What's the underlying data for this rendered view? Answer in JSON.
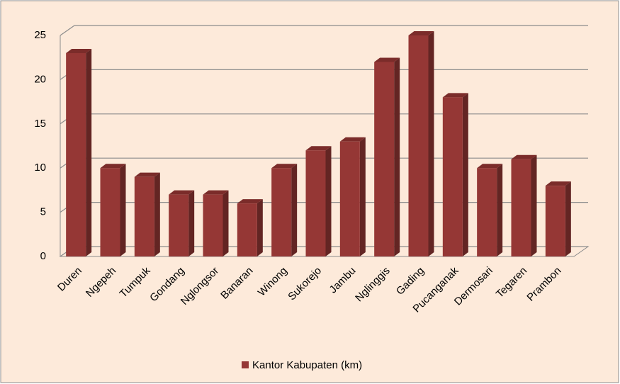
{
  "chart_data": {
    "type": "bar3d",
    "categories": [
      "Duren",
      "Ngepeh",
      "Tumpuk",
      "Gondang",
      "Nglongsor",
      "Banaran",
      "Winong",
      "Sukorejo",
      "Jambu",
      "Nglinggis",
      "Gading",
      "Pucanganak",
      "Dermosari",
      "Tegaren",
      "Prambon"
    ],
    "series": [
      {
        "name": "Kantor Kabupaten (km)",
        "color": "#953735",
        "values": [
          23,
          10,
          9,
          7,
          7,
          6,
          10,
          12,
          13,
          22,
          25,
          18,
          10,
          11,
          8
        ]
      }
    ],
    "ylim": [
      0,
      25
    ],
    "yticks": [
      0,
      5,
      10,
      15,
      20,
      25
    ],
    "grid": true,
    "legend": "bottom"
  }
}
